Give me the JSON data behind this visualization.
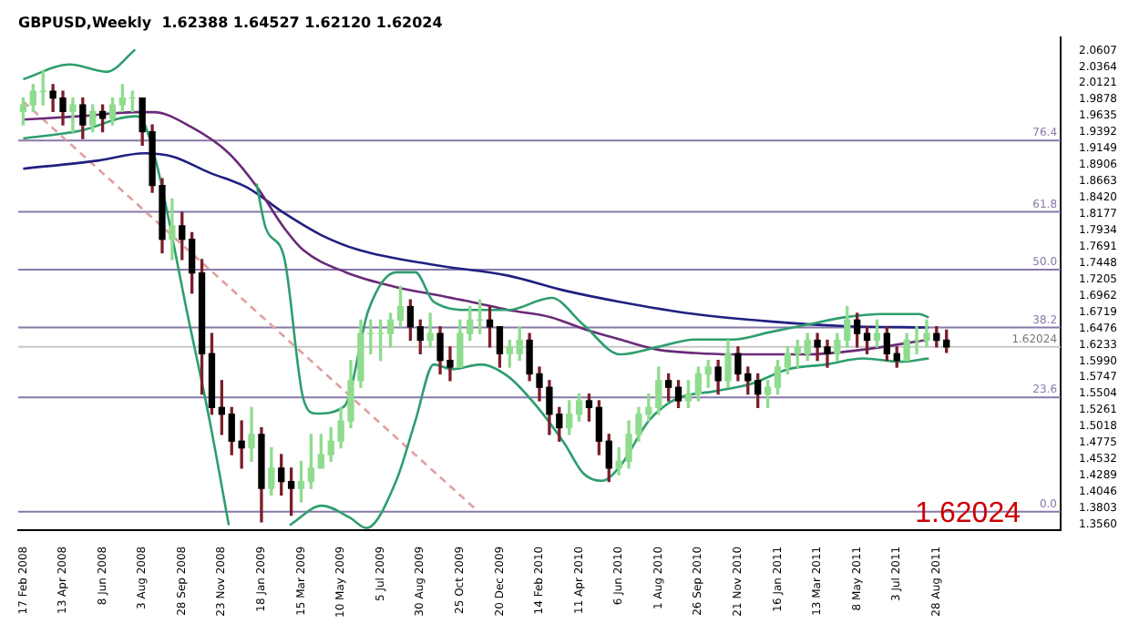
{
  "chart_data": {
    "type": "candlestick",
    "title": "GBPUSD,Weekly  1.62388 1.64527 1.62120 1.62024",
    "x": [
      "2008-02-17",
      "2008-03-02",
      "2008-03-16",
      "2008-03-30",
      "2008-04-13",
      "2008-04-27",
      "2008-05-11",
      "2008-05-25",
      "2008-06-08",
      "2008-06-22",
      "2008-07-06",
      "2008-07-20",
      "2008-08-03",
      "2008-08-17",
      "2008-08-31",
      "2008-09-14",
      "2008-09-28",
      "2008-10-12",
      "2008-10-26",
      "2008-11-09",
      "2008-11-23",
      "2008-12-07",
      "2008-12-21",
      "2009-01-04",
      "2009-01-18",
      "2009-02-01",
      "2009-02-15",
      "2009-03-01",
      "2009-03-15",
      "2009-03-29",
      "2009-04-12",
      "2009-04-26",
      "2009-05-10",
      "2009-05-24",
      "2009-06-07",
      "2009-06-21",
      "2009-07-05",
      "2009-07-19",
      "2009-08-02",
      "2009-08-16",
      "2009-08-30",
      "2009-09-13",
      "2009-09-27",
      "2009-10-11",
      "2009-10-25",
      "2009-11-08",
      "2009-11-22",
      "2009-12-06",
      "2009-12-20",
      "2010-01-03",
      "2010-01-17",
      "2010-01-31",
      "2010-02-14",
      "2010-02-28",
      "2010-03-14",
      "2010-03-28",
      "2010-04-11",
      "2010-04-25",
      "2010-05-09",
      "2010-05-23",
      "2010-06-06",
      "2010-06-20",
      "2010-07-04",
      "2010-07-18",
      "2010-08-01",
      "2010-08-15",
      "2010-08-29",
      "2010-09-12",
      "2010-09-26",
      "2010-10-10",
      "2010-10-24",
      "2010-11-07",
      "2010-11-21",
      "2010-12-05",
      "2010-12-19",
      "2011-01-02",
      "2011-01-16",
      "2011-01-30",
      "2011-02-13",
      "2011-02-27",
      "2011-03-13",
      "2011-03-27",
      "2011-04-10",
      "2011-04-24",
      "2011-05-08",
      "2011-05-22",
      "2011-06-05",
      "2011-06-19",
      "2011-07-03",
      "2011-07-17",
      "2011-07-31",
      "2011-08-14",
      "2011-08-28",
      "2011-09-11"
    ],
    "ohlc": [
      [
        1.97,
        1.99,
        1.95,
        1.98
      ],
      [
        1.98,
        2.01,
        1.97,
        2.0
      ],
      [
        2.0,
        2.03,
        1.98,
        2.0
      ],
      [
        2.0,
        2.01,
        1.97,
        1.99
      ],
      [
        1.99,
        2.0,
        1.95,
        1.97
      ],
      [
        1.97,
        1.99,
        1.94,
        1.98
      ],
      [
        1.98,
        1.99,
        1.93,
        1.95
      ],
      [
        1.95,
        1.98,
        1.94,
        1.97
      ],
      [
        1.97,
        1.98,
        1.94,
        1.96
      ],
      [
        1.96,
        1.99,
        1.95,
        1.98
      ],
      [
        1.98,
        2.01,
        1.97,
        1.99
      ],
      [
        1.99,
        2.0,
        1.97,
        1.99
      ],
      [
        1.99,
        1.99,
        1.92,
        1.94
      ],
      [
        1.94,
        1.95,
        1.85,
        1.86
      ],
      [
        1.86,
        1.87,
        1.76,
        1.78
      ],
      [
        1.78,
        1.84,
        1.75,
        1.8
      ],
      [
        1.8,
        1.82,
        1.75,
        1.78
      ],
      [
        1.78,
        1.79,
        1.7,
        1.73
      ],
      [
        1.73,
        1.75,
        1.55,
        1.61
      ],
      [
        1.61,
        1.64,
        1.52,
        1.53
      ],
      [
        1.53,
        1.57,
        1.49,
        1.52
      ],
      [
        1.52,
        1.53,
        1.46,
        1.48
      ],
      [
        1.48,
        1.51,
        1.44,
        1.47
      ],
      [
        1.47,
        1.53,
        1.45,
        1.49
      ],
      [
        1.49,
        1.5,
        1.36,
        1.41
      ],
      [
        1.41,
        1.47,
        1.4,
        1.44
      ],
      [
        1.44,
        1.46,
        1.4,
        1.42
      ],
      [
        1.42,
        1.44,
        1.37,
        1.41
      ],
      [
        1.41,
        1.45,
        1.39,
        1.42
      ],
      [
        1.42,
        1.49,
        1.41,
        1.44
      ],
      [
        1.44,
        1.49,
        1.44,
        1.46
      ],
      [
        1.46,
        1.5,
        1.45,
        1.48
      ],
      [
        1.48,
        1.53,
        1.47,
        1.51
      ],
      [
        1.51,
        1.6,
        1.5,
        1.57
      ],
      [
        1.57,
        1.66,
        1.56,
        1.64
      ],
      [
        1.64,
        1.66,
        1.61,
        1.64
      ],
      [
        1.64,
        1.66,
        1.6,
        1.64
      ],
      [
        1.64,
        1.67,
        1.62,
        1.66
      ],
      [
        1.66,
        1.71,
        1.65,
        1.68
      ],
      [
        1.68,
        1.69,
        1.63,
        1.65
      ],
      [
        1.65,
        1.66,
        1.61,
        1.63
      ],
      [
        1.63,
        1.67,
        1.62,
        1.64
      ],
      [
        1.64,
        1.65,
        1.58,
        1.6
      ],
      [
        1.6,
        1.62,
        1.57,
        1.59
      ],
      [
        1.59,
        1.66,
        1.59,
        1.64
      ],
      [
        1.64,
        1.68,
        1.63,
        1.66
      ],
      [
        1.66,
        1.69,
        1.64,
        1.66
      ],
      [
        1.66,
        1.68,
        1.62,
        1.65
      ],
      [
        1.65,
        1.65,
        1.59,
        1.61
      ],
      [
        1.61,
        1.63,
        1.59,
        1.62
      ],
      [
        1.61,
        1.65,
        1.6,
        1.63
      ],
      [
        1.63,
        1.64,
        1.57,
        1.58
      ],
      [
        1.58,
        1.59,
        1.54,
        1.56
      ],
      [
        1.56,
        1.57,
        1.49,
        1.52
      ],
      [
        1.52,
        1.53,
        1.48,
        1.5
      ],
      [
        1.5,
        1.54,
        1.49,
        1.52
      ],
      [
        1.52,
        1.55,
        1.51,
        1.54
      ],
      [
        1.54,
        1.55,
        1.51,
        1.53
      ],
      [
        1.53,
        1.54,
        1.46,
        1.48
      ],
      [
        1.48,
        1.49,
        1.42,
        1.44
      ],
      [
        1.44,
        1.47,
        1.43,
        1.45
      ],
      [
        1.45,
        1.51,
        1.44,
        1.49
      ],
      [
        1.49,
        1.53,
        1.48,
        1.52
      ],
      [
        1.52,
        1.55,
        1.51,
        1.53
      ],
      [
        1.53,
        1.59,
        1.52,
        1.57
      ],
      [
        1.57,
        1.58,
        1.54,
        1.56
      ],
      [
        1.56,
        1.57,
        1.53,
        1.54
      ],
      [
        1.54,
        1.57,
        1.53,
        1.55
      ],
      [
        1.55,
        1.59,
        1.54,
        1.58
      ],
      [
        1.58,
        1.6,
        1.56,
        1.59
      ],
      [
        1.59,
        1.6,
        1.55,
        1.57
      ],
      [
        1.57,
        1.63,
        1.56,
        1.61
      ],
      [
        1.61,
        1.62,
        1.57,
        1.58
      ],
      [
        1.58,
        1.59,
        1.55,
        1.57
      ],
      [
        1.57,
        1.58,
        1.53,
        1.55
      ],
      [
        1.55,
        1.57,
        1.53,
        1.56
      ],
      [
        1.56,
        1.6,
        1.55,
        1.59
      ],
      [
        1.59,
        1.62,
        1.58,
        1.61
      ],
      [
        1.61,
        1.63,
        1.59,
        1.62
      ],
      [
        1.61,
        1.64,
        1.6,
        1.63
      ],
      [
        1.63,
        1.64,
        1.6,
        1.62
      ],
      [
        1.62,
        1.63,
        1.59,
        1.61
      ],
      [
        1.61,
        1.64,
        1.6,
        1.63
      ],
      [
        1.63,
        1.68,
        1.62,
        1.66
      ],
      [
        1.66,
        1.67,
        1.62,
        1.64
      ],
      [
        1.64,
        1.65,
        1.61,
        1.63
      ],
      [
        1.63,
        1.66,
        1.62,
        1.64
      ],
      [
        1.64,
        1.65,
        1.6,
        1.61
      ],
      [
        1.61,
        1.62,
        1.59,
        1.6
      ],
      [
        1.6,
        1.64,
        1.6,
        1.63
      ],
      [
        1.63,
        1.65,
        1.61,
        1.63
      ],
      [
        1.63,
        1.66,
        1.62,
        1.64
      ],
      [
        1.64,
        1.65,
        1.62,
        1.63
      ],
      [
        1.63,
        1.645,
        1.612,
        1.62
      ]
    ],
    "series": [
      {
        "type": "line",
        "color": "#2e9e6e",
        "x": [
          "2008-02-17",
          "2008-04-23",
          "2008-06-14",
          "2008-07-24",
          "2008-08-06",
          "2008-12-29",
          "2009-01-11",
          "2009-01-24",
          "2009-02-19",
          "2009-03-18",
          "2009-04-05",
          "2009-05-15",
          "2009-06-18",
          "2009-07-27",
          "2009-08-23",
          "2009-09-18",
          "2009-11-10",
          "2010-01-01",
          "2010-03-03",
          "2010-04-17",
          "2010-06-08",
          "2010-07-31",
          "2010-09-21",
          "2010-11-13",
          "2011-01-05",
          "2011-02-26",
          "2011-04-20",
          "2011-06-12",
          "2011-08-03",
          "2011-08-17"
        ],
        "values": [
          2.018,
          2.04,
          2.029,
          2.062,
          null,
          null,
          1.863,
          1.797,
          1.753,
          1.543,
          1.521,
          1.532,
          1.675,
          1.731,
          1.731,
          1.687,
          1.675,
          1.675,
          1.693,
          1.653,
          1.609,
          1.62,
          1.631,
          1.631,
          1.642,
          1.653,
          1.664,
          1.669,
          1.669,
          1.664
        ]
      },
      {
        "type": "line",
        "color": "#2e9e6e",
        "x": [
          "2008-02-17",
          "2008-05-06",
          "2008-07-24",
          "2008-08-06",
          "2008-10-11",
          "2008-11-06",
          "2008-12-03",
          "2008-12-16",
          "2009-02-27",
          "2009-04-13",
          "2009-05-23",
          "2009-06-15",
          "2009-07-27",
          "2009-08-23",
          "2009-09-18",
          "2009-10-14",
          "2009-11-23",
          "2010-01-01",
          "2010-02-10",
          "2010-03-21",
          "2010-04-17",
          "2010-05-13",
          "2010-06-08",
          "2010-07-18",
          "2010-08-26",
          "2010-10-18",
          "2010-12-09",
          "2011-01-31",
          "2011-03-25",
          "2011-05-16",
          "2011-07-08",
          "2011-08-17"
        ],
        "values": [
          1.93,
          1.941,
          1.963,
          1.952,
          1.642,
          1.51,
          1.355,
          null,
          1.355,
          1.384,
          1.366,
          1.351,
          1.421,
          1.51,
          1.594,
          1.587,
          1.594,
          1.576,
          1.532,
          1.477,
          1.432,
          1.421,
          1.443,
          1.51,
          1.543,
          1.554,
          1.565,
          1.587,
          1.594,
          1.603,
          1.598,
          1.603
        ]
      },
      {
        "type": "line",
        "color": "#6a2a78",
        "x": [
          "2008-02-17",
          "2008-05-06",
          "2008-07-24",
          "2008-08-19",
          "2008-10-11",
          "2008-12-03",
          "2009-01-11",
          "2009-02-19",
          "2009-03-18",
          "2009-05-17",
          "2009-07-27",
          "2009-09-18",
          "2009-11-10",
          "2010-01-01",
          "2010-03-03",
          "2010-04-17",
          "2010-06-08",
          "2010-07-31",
          "2010-09-21",
          "2010-11-13",
          "2011-02-26",
          "2011-05-16",
          "2011-08-17"
        ],
        "values": [
          1.958,
          1.963,
          1.969,
          1.969,
          1.947,
          1.908,
          1.859,
          1.797,
          1.764,
          1.731,
          1.709,
          1.698,
          1.687,
          1.675,
          1.664,
          1.647,
          1.631,
          1.616,
          1.611,
          1.609,
          1.609,
          1.616,
          1.631
        ]
      },
      {
        "type": "line",
        "color": "#1f2080",
        "x": [
          "2008-02-17",
          "2008-06-01",
          "2008-08-06",
          "2008-09-15",
          "2008-11-06",
          "2008-12-29",
          "2009-02-19",
          "2009-04-13",
          "2009-06-05",
          "2009-09-18",
          "2010-01-01",
          "2010-03-21",
          "2010-06-08",
          "2010-09-21",
          "2011-01-05",
          "2011-04-20",
          "2011-08-17"
        ],
        "values": [
          1.885,
          1.897,
          1.908,
          1.903,
          1.879,
          1.857,
          1.819,
          1.786,
          1.764,
          1.742,
          1.726,
          1.704,
          1.687,
          1.669,
          1.658,
          1.651,
          1.649
        ]
      },
      {
        "type": "line",
        "color": "#e0a0a0",
        "line_style": "dashed",
        "x": [
          "2008-02-17",
          "2009-11-18"
        ],
        "values": [
          1.985,
          1.377
        ]
      }
    ],
    "xlim": [
      "2008-02-10",
      "2012-02-19"
    ],
    "xticks": [
      {
        "value": "2008-02-17",
        "label": "17 Feb 2008"
      },
      {
        "value": "2008-04-13",
        "label": "13 Apr 2008"
      },
      {
        "value": "2008-06-08",
        "label": "8 Jun 2008"
      },
      {
        "value": "2008-08-03",
        "label": "3 Aug 2008"
      },
      {
        "value": "2008-09-28",
        "label": "28 Sep 2008"
      },
      {
        "value": "2008-11-23",
        "label": "23 Nov 2008"
      },
      {
        "value": "2009-01-18",
        "label": "18 Jan 2009"
      },
      {
        "value": "2009-03-15",
        "label": "15 Mar 2009"
      },
      {
        "value": "2009-05-10",
        "label": "10 May 2009"
      },
      {
        "value": "2009-07-05",
        "label": "5 Jul 2009"
      },
      {
        "value": "2009-08-30",
        "label": "30 Aug 2009"
      },
      {
        "value": "2009-10-25",
        "label": "25 Oct 2009"
      },
      {
        "value": "2009-12-20",
        "label": "20 Dec 2009"
      },
      {
        "value": "2010-02-14",
        "label": "14 Feb 2010"
      },
      {
        "value": "2010-04-11",
        "label": "11 Apr 2010"
      },
      {
        "value": "2010-06-06",
        "label": "6 Jun 2010"
      },
      {
        "value": "2010-08-01",
        "label": "1 Aug 2010"
      },
      {
        "value": "2010-09-26",
        "label": "26 Sep 2010"
      },
      {
        "value": "2010-11-21",
        "label": "21 Nov 2010"
      },
      {
        "value": "2011-01-16",
        "label": "16 Jan 2011"
      },
      {
        "value": "2011-03-13",
        "label": "13 Mar 2011"
      },
      {
        "value": "2011-05-08",
        "label": "8 May 2011"
      },
      {
        "value": "2011-07-03",
        "label": "3 Jul 2011"
      },
      {
        "value": "2011-08-28",
        "label": "28 Aug 2011"
      }
    ],
    "ylim": [
      1.348,
      2.08
    ],
    "yticks": [
      {
        "value": 1.356,
        "label": "1.3560"
      },
      {
        "value": 1.3803,
        "label": "1.3803"
      },
      {
        "value": 1.4046,
        "label": "1.4046"
      },
      {
        "value": 1.4289,
        "label": "1.4289"
      },
      {
        "value": 1.4532,
        "label": "1.4532"
      },
      {
        "value": 1.4775,
        "label": "1.4775"
      },
      {
        "value": 1.5018,
        "label": "1.5018"
      },
      {
        "value": 1.5261,
        "label": "1.5261"
      },
      {
        "value": 1.5504,
        "label": "1.5504"
      },
      {
        "value": 1.5747,
        "label": "1.5747"
      },
      {
        "value": 1.599,
        "label": "1.5990"
      },
      {
        "value": 1.6233,
        "label": "1.6233"
      },
      {
        "value": 1.6476,
        "label": "1.6476"
      },
      {
        "value": 1.6719,
        "label": "1.6719"
      },
      {
        "value": 1.6962,
        "label": "1.6962"
      },
      {
        "value": 1.7205,
        "label": "1.7205"
      },
      {
        "value": 1.7448,
        "label": "1.7448"
      },
      {
        "value": 1.7691,
        "label": "1.7691"
      },
      {
        "value": 1.7934,
        "label": "1.7934"
      },
      {
        "value": 1.8177,
        "label": "1.8177"
      },
      {
        "value": 1.842,
        "label": "1.8420"
      },
      {
        "value": 1.8663,
        "label": "1.8663"
      },
      {
        "value": 1.8906,
        "label": "1.8906"
      },
      {
        "value": 1.9149,
        "label": "1.9149"
      },
      {
        "value": 1.9392,
        "label": "1.9392"
      },
      {
        "value": 1.9635,
        "label": "1.9635"
      },
      {
        "value": 1.9878,
        "label": "1.9878"
      },
      {
        "value": 2.0121,
        "label": "2.0121"
      },
      {
        "value": 2.0364,
        "label": "2.0364"
      },
      {
        "value": 2.0607,
        "label": "2.0607"
      }
    ],
    "ref_lines": [
      {
        "axis": "y",
        "value": 1.927,
        "color": "#8878a8"
      },
      {
        "axis": "y",
        "value": 1.821,
        "color": "#8878a8"
      },
      {
        "axis": "y",
        "value": 1.735,
        "color": "#8878a8"
      },
      {
        "axis": "y",
        "value": 1.649,
        "color": "#8878a8"
      },
      {
        "axis": "y",
        "value": 1.545,
        "color": "#8878a8"
      },
      {
        "axis": "y",
        "value": 1.375,
        "color": "#8878a8"
      },
      {
        "axis": "y",
        "value": 1.62024,
        "label": "1.62024",
        "color": "#c8c8c8"
      }
    ],
    "annotations": [
      "1.62024",
      {
        "text": "76.4",
        "y": 1.927
      },
      {
        "text": "61.8",
        "y": 1.821
      },
      {
        "text": "50.0",
        "y": 1.735
      },
      {
        "text": "38.2",
        "y": 1.649
      },
      {
        "text": "23.6",
        "y": 1.545
      },
      {
        "text": "0.0",
        "y": 1.375
      }
    ],
    "grid": false,
    "legend": false,
    "marker": "none"
  }
}
